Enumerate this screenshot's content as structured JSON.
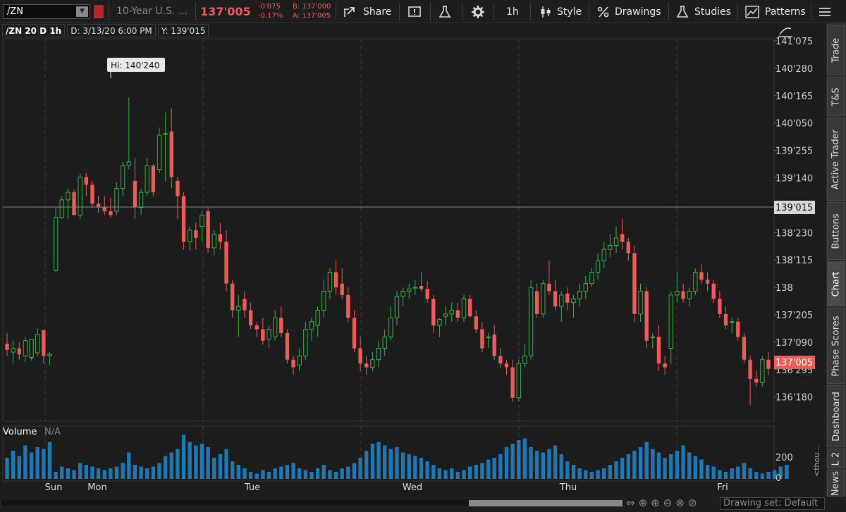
{
  "toolbar": {
    "symbol": "/ZN",
    "description": "10-Year U.S. ...",
    "last_price": "137'005",
    "change_abs": "-0'075",
    "change_pct": "-0.17%",
    "bid": "B: 137'000",
    "ask": "A: 137'005",
    "share_label": "Share",
    "interval_label": "1h",
    "style_label": "Style",
    "drawings_label": "Drawings",
    "studies_label": "Studies",
    "patterns_label": "Patterns"
  },
  "chart_header": {
    "symbol_period": "/ZN 20 D 1h",
    "date": "D: 3/13/20 6:00 PM",
    "y_readout": "Y: 139'015"
  },
  "annotations": {
    "high_label": "Hi: 140'240",
    "crosshair_price": "139'015",
    "last_price_tag": "137'005"
  },
  "volume": {
    "label": "Volume",
    "value": "N/A",
    "axis_label": "<thou...",
    "ticks": [
      "200",
      "0"
    ]
  },
  "right_tabs": [
    "Trade",
    "T&S",
    "Active Trader",
    "Buttons",
    "Chart",
    "Phase Scores",
    "Dashboard",
    "L 2",
    "News"
  ],
  "active_tab": "Chart",
  "drawing_set": "Drawing set: Default",
  "colors": {
    "up": "#36b34a",
    "down": "#f25a5a",
    "volume": "#1e78b4",
    "grid": "#3a3a3a",
    "background": "#1c1c1c"
  },
  "chart_data": {
    "type": "candlestick",
    "price_axis_ticks": [
      "141'075",
      "140'280",
      "140'165",
      "140'050",
      "139'255",
      "139'140",
      "139'015",
      "138'230",
      "138'115",
      "138",
      "137'205",
      "137'090",
      "136'295",
      "136'180"
    ],
    "x_labels": [
      "Sun",
      "Mon",
      "Tue",
      "Wed",
      "Thu",
      "Fri"
    ],
    "candles": [
      {
        "o": 137.26,
        "h": 137.4,
        "l": 137.1,
        "c": 137.18
      },
      {
        "o": 137.15,
        "h": 137.3,
        "l": 137.0,
        "c": 137.2
      },
      {
        "o": 137.2,
        "h": 137.28,
        "l": 137.05,
        "c": 137.12
      },
      {
        "o": 137.1,
        "h": 137.35,
        "l": 137.02,
        "c": 137.3
      },
      {
        "o": 137.08,
        "h": 137.3,
        "l": 137.04,
        "c": 137.32
      },
      {
        "o": 137.14,
        "h": 137.46,
        "l": 137.1,
        "c": 137.38
      },
      {
        "o": 137.44,
        "h": 137.44,
        "l": 137.0,
        "c": 137.1
      },
      {
        "o": 137.1,
        "h": 137.15,
        "l": 136.98,
        "c": 137.12
      },
      {
        "o": 138.22,
        "h": 139.05,
        "l": 138.2,
        "c": 138.92
      },
      {
        "o": 138.92,
        "h": 139.2,
        "l": 138.9,
        "c": 139.15
      },
      {
        "o": 139.15,
        "h": 139.3,
        "l": 138.9,
        "c": 139.25
      },
      {
        "o": 139.25,
        "h": 139.28,
        "l": 138.95,
        "c": 138.95
      },
      {
        "o": 138.95,
        "h": 139.5,
        "l": 138.9,
        "c": 139.45
      },
      {
        "o": 139.45,
        "h": 139.5,
        "l": 139.2,
        "c": 139.35
      },
      {
        "o": 139.35,
        "h": 139.4,
        "l": 139.05,
        "c": 139.1
      },
      {
        "o": 139.1,
        "h": 139.2,
        "l": 138.98,
        "c": 139.05
      },
      {
        "o": 139.06,
        "h": 139.2,
        "l": 138.95,
        "c": 139.0
      },
      {
        "o": 139.0,
        "h": 139.18,
        "l": 138.92,
        "c": 138.95
      },
      {
        "o": 139.0,
        "h": 139.38,
        "l": 138.95,
        "c": 139.3
      },
      {
        "o": 139.3,
        "h": 139.65,
        "l": 139.2,
        "c": 139.6
      },
      {
        "o": 139.6,
        "h": 140.5,
        "l": 139.55,
        "c": 139.65
      },
      {
        "o": 139.4,
        "h": 139.7,
        "l": 138.9,
        "c": 139.05
      },
      {
        "o": 139.05,
        "h": 139.3,
        "l": 138.95,
        "c": 139.25
      },
      {
        "o": 139.25,
        "h": 139.7,
        "l": 139.2,
        "c": 139.6
      },
      {
        "o": 139.6,
        "h": 139.62,
        "l": 139.2,
        "c": 139.25
      },
      {
        "o": 139.55,
        "h": 140.1,
        "l": 139.5,
        "c": 140.0
      },
      {
        "o": 140.02,
        "h": 140.3,
        "l": 139.4,
        "c": 140.02
      },
      {
        "o": 140.05,
        "h": 140.35,
        "l": 139.3,
        "c": 139.45
      },
      {
        "o": 139.4,
        "h": 139.45,
        "l": 138.9,
        "c": 139.2
      },
      {
        "o": 139.2,
        "h": 139.25,
        "l": 138.5,
        "c": 138.6
      },
      {
        "o": 138.6,
        "h": 138.8,
        "l": 138.48,
        "c": 138.75
      },
      {
        "o": 138.75,
        "h": 138.85,
        "l": 138.5,
        "c": 138.65
      },
      {
        "o": 138.8,
        "h": 139.0,
        "l": 138.6,
        "c": 138.95
      },
      {
        "o": 139.0,
        "h": 139.05,
        "l": 138.45,
        "c": 138.52
      },
      {
        "o": 138.52,
        "h": 138.75,
        "l": 138.42,
        "c": 138.7
      },
      {
        "o": 138.7,
        "h": 138.85,
        "l": 138.5,
        "c": 138.6
      },
      {
        "o": 138.6,
        "h": 138.75,
        "l": 137.95,
        "c": 138.05
      },
      {
        "o": 138.05,
        "h": 138.1,
        "l": 137.6,
        "c": 137.7
      },
      {
        "o": 137.7,
        "h": 137.9,
        "l": 137.35,
        "c": 137.75
      },
      {
        "o": 137.85,
        "h": 137.95,
        "l": 137.6,
        "c": 137.7
      },
      {
        "o": 137.7,
        "h": 137.8,
        "l": 137.45,
        "c": 137.5
      },
      {
        "o": 137.5,
        "h": 137.55,
        "l": 137.35,
        "c": 137.45
      },
      {
        "o": 137.45,
        "h": 137.6,
        "l": 137.25,
        "c": 137.3
      },
      {
        "o": 137.32,
        "h": 137.5,
        "l": 137.2,
        "c": 137.45
      },
      {
        "o": 137.35,
        "h": 137.7,
        "l": 137.3,
        "c": 137.6
      },
      {
        "o": 137.6,
        "h": 137.75,
        "l": 137.35,
        "c": 137.4
      },
      {
        "o": 137.4,
        "h": 137.45,
        "l": 137.0,
        "c": 137.05
      },
      {
        "o": 137.05,
        "h": 137.1,
        "l": 136.85,
        "c": 136.95
      },
      {
        "o": 136.98,
        "h": 137.2,
        "l": 136.9,
        "c": 137.1
      },
      {
        "o": 137.1,
        "h": 137.55,
        "l": 137.05,
        "c": 137.45
      },
      {
        "o": 137.45,
        "h": 137.6,
        "l": 137.3,
        "c": 137.55
      },
      {
        "o": 137.5,
        "h": 137.75,
        "l": 137.35,
        "c": 137.7
      },
      {
        "o": 137.7,
        "h": 138.1,
        "l": 137.6,
        "c": 137.95
      },
      {
        "o": 137.95,
        "h": 138.25,
        "l": 137.85,
        "c": 138.2
      },
      {
        "o": 138.2,
        "h": 138.35,
        "l": 137.9,
        "c": 138.0
      },
      {
        "o": 138.05,
        "h": 138.25,
        "l": 137.85,
        "c": 137.9
      },
      {
        "o": 137.9,
        "h": 138.0,
        "l": 137.55,
        "c": 137.6
      },
      {
        "o": 137.6,
        "h": 137.7,
        "l": 137.15,
        "c": 137.2
      },
      {
        "o": 137.2,
        "h": 137.35,
        "l": 136.9,
        "c": 137.0
      },
      {
        "o": 137.0,
        "h": 137.1,
        "l": 136.85,
        "c": 136.95
      },
      {
        "o": 136.95,
        "h": 137.15,
        "l": 136.9,
        "c": 137.05
      },
      {
        "o": 137.05,
        "h": 137.3,
        "l": 136.95,
        "c": 137.2
      },
      {
        "o": 137.2,
        "h": 137.45,
        "l": 137.1,
        "c": 137.35
      },
      {
        "o": 137.35,
        "h": 137.75,
        "l": 137.3,
        "c": 137.6
      },
      {
        "o": 137.6,
        "h": 137.95,
        "l": 137.5,
        "c": 137.88
      },
      {
        "o": 137.88,
        "h": 138.0,
        "l": 137.75,
        "c": 137.95
      },
      {
        "o": 137.95,
        "h": 138.05,
        "l": 137.85,
        "c": 137.98
      },
      {
        "o": 138.0,
        "h": 138.1,
        "l": 137.9,
        "c": 138.0
      },
      {
        "o": 138.02,
        "h": 138.2,
        "l": 137.95,
        "c": 137.98
      },
      {
        "o": 137.98,
        "h": 138.08,
        "l": 137.8,
        "c": 137.85
      },
      {
        "o": 137.85,
        "h": 137.9,
        "l": 137.4,
        "c": 137.5
      },
      {
        "o": 137.5,
        "h": 137.6,
        "l": 137.35,
        "c": 137.58
      },
      {
        "o": 137.62,
        "h": 137.75,
        "l": 137.5,
        "c": 137.65
      },
      {
        "o": 137.65,
        "h": 137.8,
        "l": 137.55,
        "c": 137.7
      },
      {
        "o": 137.7,
        "h": 137.8,
        "l": 137.55,
        "c": 137.6
      },
      {
        "o": 137.6,
        "h": 137.9,
        "l": 137.55,
        "c": 137.85
      },
      {
        "o": 137.85,
        "h": 137.9,
        "l": 137.6,
        "c": 137.62
      },
      {
        "o": 137.62,
        "h": 137.7,
        "l": 137.4,
        "c": 137.45
      },
      {
        "o": 137.45,
        "h": 137.55,
        "l": 137.15,
        "c": 137.2
      },
      {
        "o": 137.35,
        "h": 137.4,
        "l": 137.2,
        "c": 137.35
      },
      {
        "o": 137.38,
        "h": 137.5,
        "l": 137.05,
        "c": 137.1
      },
      {
        "o": 137.1,
        "h": 137.2,
        "l": 136.95,
        "c": 137.0
      },
      {
        "o": 137.0,
        "h": 137.05,
        "l": 136.85,
        "c": 136.95
      },
      {
        "o": 136.95,
        "h": 137.05,
        "l": 136.5,
        "c": 136.55
      },
      {
        "o": 136.55,
        "h": 137.05,
        "l": 136.5,
        "c": 137.0
      },
      {
        "o": 137.0,
        "h": 137.25,
        "l": 136.95,
        "c": 137.1
      },
      {
        "o": 137.1,
        "h": 138.1,
        "l": 137.05,
        "c": 138.0
      },
      {
        "o": 137.95,
        "h": 138.05,
        "l": 137.6,
        "c": 137.65
      },
      {
        "o": 137.65,
        "h": 138.1,
        "l": 137.6,
        "c": 138.05
      },
      {
        "o": 138.05,
        "h": 138.35,
        "l": 137.9,
        "c": 137.95
      },
      {
        "o": 137.95,
        "h": 138.1,
        "l": 137.7,
        "c": 137.75
      },
      {
        "o": 137.75,
        "h": 137.95,
        "l": 137.55,
        "c": 137.9
      },
      {
        "o": 137.92,
        "h": 138.0,
        "l": 137.7,
        "c": 137.8
      },
      {
        "o": 137.8,
        "h": 137.9,
        "l": 137.6,
        "c": 137.85
      },
      {
        "o": 137.85,
        "h": 138.05,
        "l": 137.75,
        "c": 137.95
      },
      {
        "o": 137.95,
        "h": 138.15,
        "l": 137.85,
        "c": 138.05
      },
      {
        "o": 138.05,
        "h": 138.25,
        "l": 138.0,
        "c": 138.2
      },
      {
        "o": 138.2,
        "h": 138.45,
        "l": 138.1,
        "c": 138.35
      },
      {
        "o": 138.35,
        "h": 138.6,
        "l": 138.25,
        "c": 138.5
      },
      {
        "o": 138.5,
        "h": 138.7,
        "l": 138.4,
        "c": 138.55
      },
      {
        "o": 138.55,
        "h": 138.8,
        "l": 138.45,
        "c": 138.65
      },
      {
        "o": 138.7,
        "h": 138.9,
        "l": 138.5,
        "c": 138.6
      },
      {
        "o": 138.6,
        "h": 138.65,
        "l": 138.35,
        "c": 138.45
      },
      {
        "o": 138.45,
        "h": 138.55,
        "l": 137.55,
        "c": 137.65
      },
      {
        "o": 137.65,
        "h": 138.05,
        "l": 137.55,
        "c": 137.95
      },
      {
        "o": 137.95,
        "h": 138.0,
        "l": 137.2,
        "c": 137.3
      },
      {
        "o": 137.35,
        "h": 137.4,
        "l": 137.2,
        "c": 137.35
      },
      {
        "o": 137.35,
        "h": 137.5,
        "l": 136.9,
        "c": 137.0
      },
      {
        "o": 137.0,
        "h": 137.1,
        "l": 136.85,
        "c": 136.95
      },
      {
        "o": 137.2,
        "h": 137.95,
        "l": 137.0,
        "c": 137.9
      },
      {
        "o": 137.9,
        "h": 138.2,
        "l": 137.8,
        "c": 137.95
      },
      {
        "o": 137.95,
        "h": 138.05,
        "l": 137.8,
        "c": 137.85
      },
      {
        "o": 137.85,
        "h": 138.0,
        "l": 137.75,
        "c": 137.95
      },
      {
        "o": 137.95,
        "h": 138.25,
        "l": 137.9,
        "c": 138.2
      },
      {
        "o": 138.2,
        "h": 138.3,
        "l": 138.05,
        "c": 138.1
      },
      {
        "o": 138.1,
        "h": 138.2,
        "l": 137.95,
        "c": 138.05
      },
      {
        "o": 138.05,
        "h": 138.1,
        "l": 137.8,
        "c": 137.85
      },
      {
        "o": 137.85,
        "h": 137.95,
        "l": 137.6,
        "c": 137.65
      },
      {
        "o": 137.65,
        "h": 137.75,
        "l": 137.45,
        "c": 137.5
      },
      {
        "o": 137.55,
        "h": 137.6,
        "l": 137.4,
        "c": 137.55
      },
      {
        "o": 137.55,
        "h": 137.6,
        "l": 137.3,
        "c": 137.35
      },
      {
        "o": 137.35,
        "h": 137.4,
        "l": 137.0,
        "c": 137.05
      },
      {
        "o": 137.05,
        "h": 137.1,
        "l": 136.45,
        "c": 136.8
      },
      {
        "o": 136.8,
        "h": 136.9,
        "l": 136.7,
        "c": 136.75
      },
      {
        "o": 136.75,
        "h": 137.1,
        "l": 136.7,
        "c": 137.05
      },
      {
        "o": 137.05,
        "h": 137.15,
        "l": 136.85,
        "c": 136.93
      }
    ],
    "volume_axis_max": 260,
    "volume": [
      120,
      160,
      130,
      190,
      150,
      180,
      170,
      210,
      40,
      70,
      60,
      50,
      90,
      80,
      70,
      60,
      50,
      60,
      70,
      90,
      150,
      80,
      70,
      60,
      70,
      90,
      130,
      150,
      170,
      250,
      210,
      190,
      200,
      180,
      120,
      140,
      170,
      100,
      80,
      60,
      40,
      30,
      50,
      40,
      60,
      70,
      80,
      90,
      60,
      50,
      40,
      60,
      80,
      50,
      40,
      60,
      70,
      90,
      120,
      160,
      200,
      210,
      190,
      170,
      180,
      150,
      140,
      130,
      120,
      100,
      80,
      60,
      50,
      60,
      40,
      50,
      70,
      80,
      90,
      110,
      120,
      140,
      180,
      200,
      220,
      230,
      180,
      160,
      150,
      170,
      190,
      140,
      100,
      80,
      60,
      50,
      40,
      50,
      60,
      80,
      100,
      120,
      140,
      160,
      180,
      210,
      170,
      150,
      120,
      140,
      160,
      190,
      150,
      130,
      110,
      80,
      70,
      50,
      40,
      60,
      70,
      90,
      60,
      40,
      30,
      40,
      50,
      70,
      80
    ]
  }
}
